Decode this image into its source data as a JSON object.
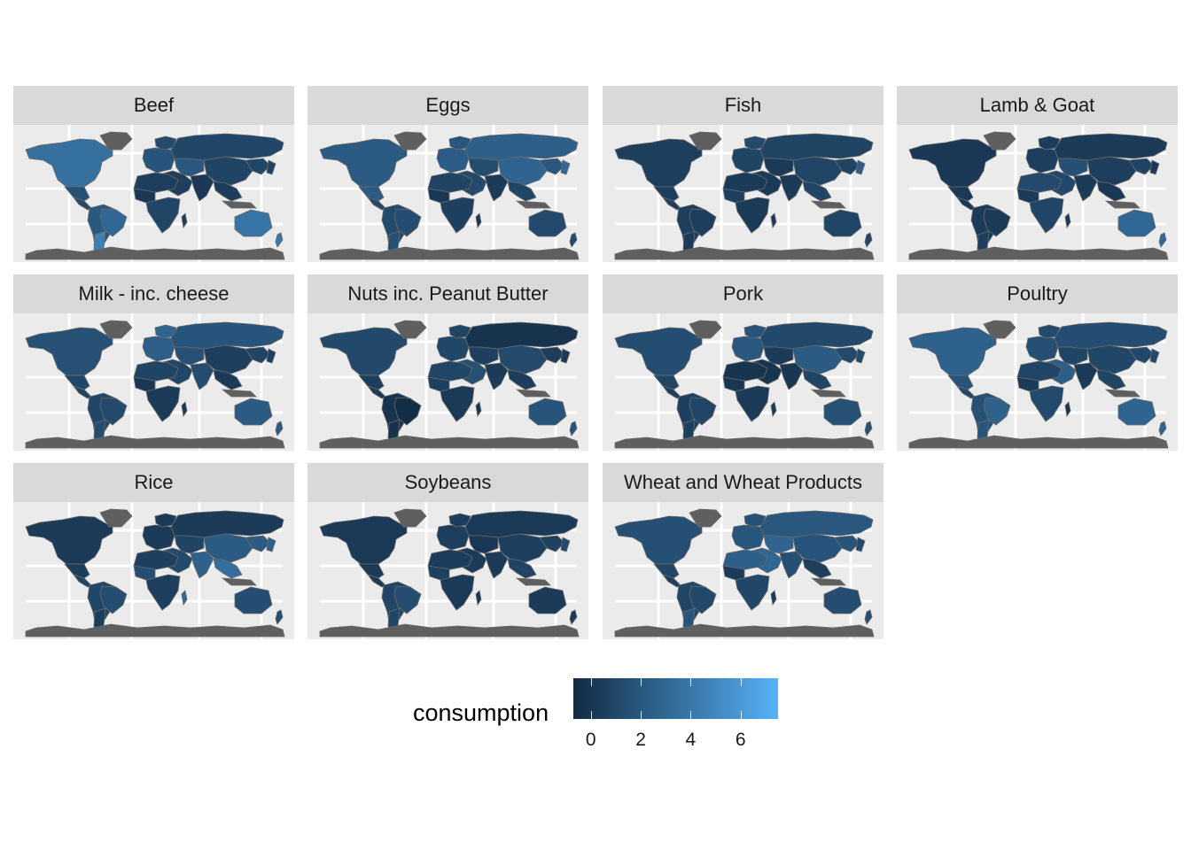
{
  "legend": {
    "title": "consumption",
    "breaks": [
      "0",
      "2",
      "4",
      "6"
    ],
    "low_color": "#132b43",
    "high_color": "#56b1f7",
    "range": [
      -0.7,
      7.5
    ]
  },
  "colors": {
    "no_data": "#5f5f5f",
    "panel_background": "#ebebeb",
    "strip_background": "#d9d9d9"
  },
  "facets": [
    {
      "label": "Beef",
      "regions": {
        "namerica": 3.5,
        "mexico": 1.6,
        "camerica": 1.2,
        "samerica": 2.1,
        "brazil": 3.0,
        "argentina": 4.5,
        "europe": 1.8,
        "scand": 1.2,
        "russia": 1.0,
        "casia": 2.0,
        "easia": 1.0,
        "china": 0.8,
        "sasia": 0.1,
        "seasia": 0.4,
        "nafrica": 0.5,
        "wafrica": 0.1,
        "safrica": 0.9,
        "madagascar": 0.4,
        "mideast": 0.5,
        "australia": 3.8,
        "nz": 3.8,
        "japan": 0.7
      }
    },
    {
      "label": "Eggs",
      "regions": {
        "namerica": 2.2,
        "mexico": 2.2,
        "camerica": 1.0,
        "samerica": 1.2,
        "brazil": 1.4,
        "argentina": 1.6,
        "europe": 2.3,
        "scand": 1.9,
        "russia": 2.5,
        "casia": 1.3,
        "easia": 2.0,
        "china": 2.8,
        "sasia": 0.3,
        "seasia": 0.9,
        "nafrica": 0.8,
        "wafrica": 0.1,
        "safrica": 0.6,
        "madagascar": 0.1,
        "mideast": 1.2,
        "australia": 1.2,
        "nz": 1.2,
        "japan": 3.0
      }
    },
    {
      "label": "Fish",
      "regions": {
        "namerica": 0.5,
        "mexico": 0.5,
        "camerica": 0.5,
        "samerica": 0.5,
        "brazil": 0.5,
        "argentina": 0.3,
        "europe": 0.8,
        "scand": 1.2,
        "russia": 0.8,
        "casia": 0.2,
        "easia": 0.8,
        "china": 0.9,
        "sasia": 0.3,
        "seasia": 0.9,
        "nafrica": 0.3,
        "wafrica": 0.6,
        "safrica": 0.2,
        "madagascar": 0.2,
        "mideast": 0.2,
        "australia": 0.9,
        "nz": 0.9,
        "japan": 2.4
      }
    },
    {
      "label": "Lamb & Goat",
      "regions": {
        "namerica": 0.1,
        "mexico": 0.2,
        "camerica": 0.1,
        "samerica": 0.3,
        "brazil": 0.2,
        "argentina": 0.5,
        "europe": 0.5,
        "scand": 0.4,
        "russia": 0.3,
        "casia": 1.5,
        "easia": 0.8,
        "china": 0.5,
        "sasia": 0.3,
        "seasia": 0.1,
        "nafrica": 1.2,
        "wafrica": 0.3,
        "safrica": 0.9,
        "madagascar": 0.2,
        "mideast": 1.1,
        "australia": 3.0,
        "nz": 3.0,
        "japan": 0.1
      }
    },
    {
      "label": "Milk - inc. cheese",
      "regions": {
        "namerica": 1.6,
        "mexico": 1.0,
        "camerica": 0.8,
        "samerica": 1.0,
        "brazil": 1.2,
        "argentina": 1.4,
        "europe": 2.4,
        "scand": 2.8,
        "russia": 1.8,
        "casia": 1.6,
        "easia": 0.8,
        "china": 0.5,
        "sasia": 1.3,
        "seasia": 0.2,
        "nafrica": 0.8,
        "wafrica": 0.1,
        "safrica": 0.3,
        "madagascar": 0.1,
        "mideast": 1.0,
        "australia": 2.2,
        "nz": 2.2,
        "japan": 0.6
      }
    },
    {
      "label": "Nuts inc. Peanut Butter",
      "regions": {
        "namerica": 1.1,
        "mexico": 0.4,
        "camerica": 0.2,
        "samerica": -0.2,
        "brazil": -0.5,
        "argentina": -0.3,
        "europe": 1.0,
        "scand": 0.8,
        "russia": -0.2,
        "casia": 0.6,
        "easia": 0.4,
        "china": 1.2,
        "sasia": 0.3,
        "seasia": 0.4,
        "nafrica": 0.9,
        "wafrica": 0.6,
        "safrica": 0.2,
        "madagascar": 0.0,
        "mideast": 1.6,
        "australia": 1.8,
        "nz": 1.8,
        "japan": 0.2
      }
    },
    {
      "label": "Pork",
      "regions": {
        "namerica": 1.4,
        "mexico": 0.8,
        "camerica": 0.5,
        "samerica": 0.6,
        "brazil": 0.9,
        "argentina": 0.6,
        "europe": 2.0,
        "scand": 1.8,
        "russia": 1.1,
        "casia": 0.3,
        "easia": 1.2,
        "china": 2.2,
        "sasia": 0.0,
        "seasia": 0.8,
        "nafrica": -0.1,
        "wafrica": 0.0,
        "safrica": 0.3,
        "madagascar": 0.2,
        "mideast": -0.1,
        "australia": 1.6,
        "nz": 1.6,
        "japan": 1.2
      }
    },
    {
      "label": "Poultry",
      "regions": {
        "namerica": 2.6,
        "mexico": 1.8,
        "camerica": 1.2,
        "samerica": 1.6,
        "brazil": 2.6,
        "argentina": 1.8,
        "europe": 1.5,
        "scand": 1.2,
        "russia": 1.4,
        "casia": 0.8,
        "easia": 1.1,
        "china": 1.0,
        "sasia": 0.2,
        "seasia": 0.8,
        "nafrica": 0.9,
        "wafrica": 0.2,
        "safrica": 1.2,
        "madagascar": 0.1,
        "mideast": 2.4,
        "australia": 2.8,
        "nz": 2.8,
        "japan": 1.2
      }
    },
    {
      "label": "Rice",
      "regions": {
        "namerica": 0.3,
        "mexico": 0.4,
        "camerica": 0.8,
        "samerica": 1.0,
        "brazil": 1.4,
        "argentina": 0.4,
        "europe": 0.3,
        "scand": 0.2,
        "russia": 0.3,
        "casia": 0.8,
        "easia": 2.2,
        "china": 2.2,
        "sasia": 2.6,
        "seasia": 3.4,
        "nafrica": 0.6,
        "wafrica": 1.4,
        "safrica": 0.5,
        "madagascar": 3.0,
        "mideast": 1.2,
        "australia": 1.4,
        "nz": 1.4,
        "japan": 2.6
      }
    },
    {
      "label": "Soybeans",
      "regions": {
        "namerica": 0.2,
        "mexico": 0.2,
        "camerica": 0.2,
        "samerica": 0.9,
        "brazil": 1.4,
        "argentina": 1.0,
        "europe": 0.5,
        "scand": 0.4,
        "russia": 0.2,
        "casia": 0.1,
        "easia": 0.7,
        "china": 0.6,
        "sasia": 0.3,
        "seasia": 0.8,
        "nafrica": 0.4,
        "wafrica": 0.6,
        "safrica": 0.2,
        "madagascar": 0.1,
        "mideast": 0.3,
        "australia": 0.3,
        "nz": 0.3,
        "japan": 1.2
      }
    },
    {
      "label": "Wheat and Wheat Products",
      "regions": {
        "namerica": 1.5,
        "mexico": 1.0,
        "camerica": 0.6,
        "samerica": 1.0,
        "brazil": 1.1,
        "argentina": 1.8,
        "europe": 1.9,
        "scand": 1.6,
        "russia": 2.0,
        "casia": 2.8,
        "easia": 1.8,
        "china": 1.8,
        "sasia": 1.5,
        "seasia": 0.5,
        "nafrica": 2.5,
        "wafrica": 0.2,
        "safrica": 1.0,
        "madagascar": 0.2,
        "mideast": 2.9,
        "australia": 1.4,
        "nz": 1.4,
        "japan": 1.2
      }
    }
  ]
}
